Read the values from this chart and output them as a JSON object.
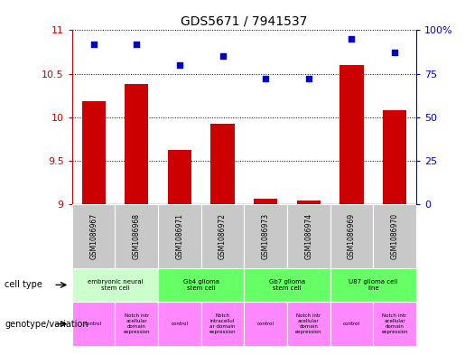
{
  "title": "GDS5671 / 7941537",
  "samples": [
    "GSM1086967",
    "GSM1086968",
    "GSM1086971",
    "GSM1086972",
    "GSM1086973",
    "GSM1086974",
    "GSM1086969",
    "GSM1086970"
  ],
  "transformed_count": [
    10.18,
    10.38,
    9.62,
    9.92,
    9.06,
    9.04,
    10.6,
    10.08
  ],
  "percentile_rank": [
    92,
    92,
    80,
    85,
    72,
    72,
    95,
    87
  ],
  "ylim_left": [
    9,
    11
  ],
  "ylim_right": [
    0,
    100
  ],
  "yticks_left": [
    9,
    9.5,
    10,
    10.5,
    11
  ],
  "yticks_right": [
    0,
    25,
    50,
    75,
    100
  ],
  "bar_color": "#cc0000",
  "dot_color": "#0000cc",
  "background_color": "#ffffff",
  "cell_type_groups": [
    {
      "label": "embryonic neural\nstem cell",
      "start": 0,
      "end": 2,
      "color": "#ccffcc"
    },
    {
      "label": "Gb4 glioma\nstem cell",
      "start": 2,
      "end": 4,
      "color": "#66ff66"
    },
    {
      "label": "Gb7 glioma\nstem cell",
      "start": 4,
      "end": 6,
      "color": "#66ff66"
    },
    {
      "label": "U87 glioma cell\nline",
      "start": 6,
      "end": 8,
      "color": "#66ff66"
    }
  ],
  "genotype_groups": [
    {
      "label": "control",
      "start": 0,
      "end": 1,
      "color": "#ff88ff"
    },
    {
      "label": "Notch intr\nacellular\ndomain\nexpression",
      "start": 1,
      "end": 2,
      "color": "#ff88ff"
    },
    {
      "label": "control",
      "start": 2,
      "end": 3,
      "color": "#ff88ff"
    },
    {
      "label": "Notch\nintracellul\nar domain\nexpression",
      "start": 3,
      "end": 4,
      "color": "#ff88ff"
    },
    {
      "label": "control",
      "start": 4,
      "end": 5,
      "color": "#ff88ff"
    },
    {
      "label": "Notch intr\nacellular\ndomain\nexpression",
      "start": 5,
      "end": 6,
      "color": "#ff88ff"
    },
    {
      "label": "control",
      "start": 6,
      "end": 7,
      "color": "#ff88ff"
    },
    {
      "label": "Notch intr\nacellular\ndomain\nexpression",
      "start": 7,
      "end": 8,
      "color": "#ff88ff"
    }
  ],
  "tick_label_color": "#cc0000",
  "right_tick_color": "#0000cc",
  "grid_color": "#000000",
  "sample_bg_color": "#c8c8c8",
  "label_fontsize": 7,
  "title_fontsize": 10
}
